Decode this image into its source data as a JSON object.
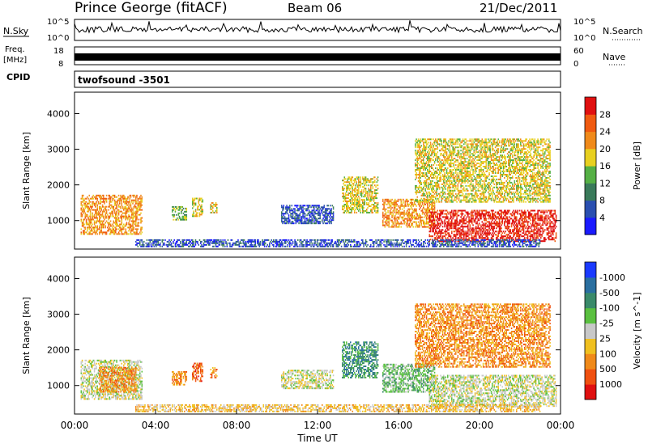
{
  "header": {
    "station": "Prince George (fitACF)",
    "beam": "Beam 06",
    "date": "21/Dec/2011"
  },
  "side_labels": {
    "nsky": "N.Sky",
    "freq_line1": "Freq.",
    "freq_line2": "[MHz]",
    "cpid": "CPID",
    "nsearch": "N.Search",
    "nave": "Nave",
    "nsky_top": "10^5",
    "nsky_bottom": "10^0",
    "nsearch_top": "10^5",
    "nsearch_bottom": "10^0",
    "freq_top": "18",
    "freq_bottom": "8",
    "nave_top": "60",
    "nave_bottom": "0"
  },
  "program": "twofsound -3501",
  "chart_data": [
    {
      "type": "heatmap",
      "name": "power",
      "ylabel": "Slant Range [km]",
      "ylim": [
        200,
        4600
      ],
      "yticks": [
        "1000",
        "2000",
        "3000",
        "4000"
      ],
      "colorbar_label": "Power [dB]",
      "colorbar_ticks": [
        "4",
        "8",
        "12",
        "16",
        "20",
        "24",
        "28"
      ],
      "colors": [
        "#1a1aff",
        "#2a4fb0",
        "#3a7a5a",
        "#55b045",
        "#e8d020",
        "#f08a1a",
        "#f05a10",
        "#e01010"
      ],
      "regions": [
        {
          "t": [
            0.3,
            3.3
          ],
          "r": [
            600,
            1700
          ],
          "level": 5
        },
        {
          "t": [
            4.8,
            5.5
          ],
          "r": [
            1000,
            1400
          ],
          "level": 3
        },
        {
          "t": [
            5.8,
            6.3
          ],
          "r": [
            1100,
            1600
          ],
          "level": 4
        },
        {
          "t": [
            6.7,
            7.0
          ],
          "r": [
            1200,
            1500
          ],
          "level": 4
        },
        {
          "t": [
            10.2,
            12.8
          ],
          "r": [
            900,
            1400
          ],
          "level": 1
        },
        {
          "t": [
            13.2,
            15.0
          ],
          "r": [
            1200,
            2200
          ],
          "level": 4
        },
        {
          "t": [
            15.2,
            17.8
          ],
          "r": [
            800,
            1600
          ],
          "level": 5
        },
        {
          "t": [
            17.5,
            23.8
          ],
          "r": [
            400,
            1300
          ],
          "level": 7
        },
        {
          "t": [
            16.8,
            23.5
          ],
          "r": [
            1500,
            3300
          ],
          "level": 4
        },
        {
          "t": [
            3.0,
            23.0
          ],
          "r": [
            250,
            450
          ],
          "level": 1
        }
      ]
    },
    {
      "type": "heatmap",
      "name": "velocity",
      "xlabel": "Time UT",
      "ylabel": "Slant Range [km]",
      "ylim": [
        200,
        4600
      ],
      "yticks": [
        "1000",
        "2000",
        "3000",
        "4000"
      ],
      "xticks": [
        "00:00",
        "04:00",
        "08:00",
        "12:00",
        "16:00",
        "20:00",
        "00:00"
      ],
      "colorbar_label": "Velocity [m s^-1]",
      "colorbar_ticks": [
        "1000",
        "500",
        "100",
        "25",
        "-25",
        "-100",
        "-500",
        "-1000"
      ],
      "colors": [
        "#1a3aff",
        "#2a6fa0",
        "#3a8a6a",
        "#5ac040",
        "#c8c8c8",
        "#f0c020",
        "#f08a1a",
        "#f05010",
        "#e01010"
      ],
      "regions": [
        {
          "t": [
            0.3,
            3.3
          ],
          "r": [
            600,
            1700
          ],
          "level": 4
        },
        {
          "t": [
            1.2,
            3.0
          ],
          "r": [
            800,
            1500
          ],
          "level": 6
        },
        {
          "t": [
            4.8,
            5.5
          ],
          "r": [
            1000,
            1400
          ],
          "level": 6
        },
        {
          "t": [
            5.8,
            6.3
          ],
          "r": [
            1100,
            1600
          ],
          "level": 7
        },
        {
          "t": [
            6.7,
            7.0
          ],
          "r": [
            1200,
            1500
          ],
          "level": 6
        },
        {
          "t": [
            10.2,
            12.8
          ],
          "r": [
            900,
            1400
          ],
          "level": 4
        },
        {
          "t": [
            13.2,
            15.0
          ],
          "r": [
            1200,
            2200
          ],
          "level": 2
        },
        {
          "t": [
            15.2,
            17.8
          ],
          "r": [
            800,
            1600
          ],
          "level": 3
        },
        {
          "t": [
            17.5,
            23.8
          ],
          "r": [
            400,
            1300
          ],
          "level": 4
        },
        {
          "t": [
            16.8,
            23.5
          ],
          "r": [
            1500,
            3300
          ],
          "level": 6
        },
        {
          "t": [
            3.0,
            23.0
          ],
          "r": [
            250,
            450
          ],
          "level": 5
        }
      ]
    }
  ]
}
